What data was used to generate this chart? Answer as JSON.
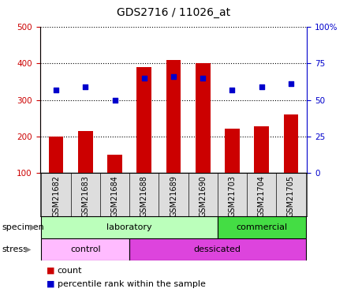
{
  "title": "GDS2716 / 11026_at",
  "samples": [
    "GSM21682",
    "GSM21683",
    "GSM21684",
    "GSM21688",
    "GSM21689",
    "GSM21690",
    "GSM21703",
    "GSM21704",
    "GSM21705"
  ],
  "counts": [
    200,
    215,
    150,
    390,
    410,
    400,
    222,
    228,
    260
  ],
  "percentile_ranks": [
    57,
    59,
    50,
    65,
    66,
    65,
    57,
    59,
    61
  ],
  "ylim_left": [
    100,
    500
  ],
  "ylim_right": [
    0,
    100
  ],
  "yticks_left": [
    100,
    200,
    300,
    400,
    500
  ],
  "yticks_right": [
    0,
    25,
    50,
    75,
    100
  ],
  "bar_color": "#cc0000",
  "dot_color": "#0000cc",
  "bar_bottom": 100,
  "specimen_groups": [
    {
      "label": "laboratory",
      "start": 0,
      "end": 6,
      "color": "#bbffbb"
    },
    {
      "label": "commercial",
      "start": 6,
      "end": 9,
      "color": "#44dd44"
    }
  ],
  "stress_groups": [
    {
      "label": "control",
      "start": 0,
      "end": 3,
      "color": "#ffbbff"
    },
    {
      "label": "dessicated",
      "start": 3,
      "end": 9,
      "color": "#dd44dd"
    }
  ],
  "specimen_label": "specimen",
  "stress_label": "stress",
  "legend_count_label": "count",
  "legend_pct_label": "percentile rank within the sample",
  "axis_label_color_left": "#cc0000",
  "axis_label_color_right": "#0000cc",
  "background_color": "#ffffff",
  "title_fontsize": 10
}
